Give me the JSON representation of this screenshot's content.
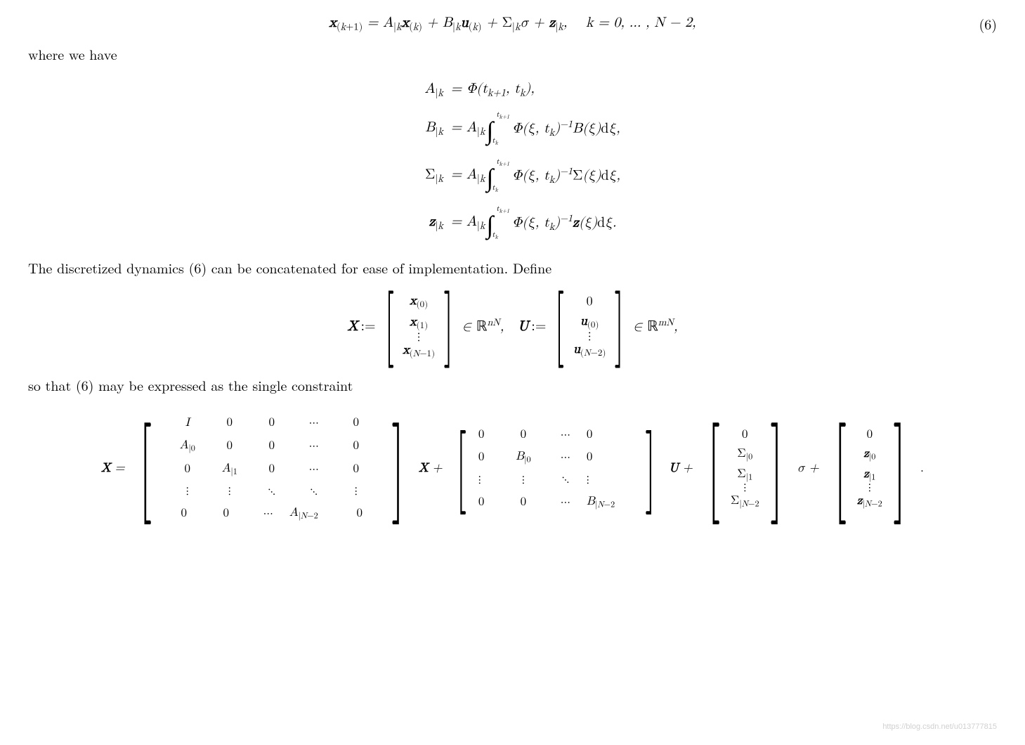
{
  "eq6": {
    "content": "x_{(k+1)} = A_{|k} x_{(k)} + B_{|k} u_{(k)} + Σ_{|k} σ + z_{|k},   k = 0, …, N − 2,",
    "number": "(6)"
  },
  "para1": "where we have",
  "defs": {
    "A": {
      "lhs": "A_{|k}",
      "rhs": "= Φ(t_{k+1}, t_k),"
    },
    "B": {
      "lhs": "B_{|k}",
      "rhs_prefix": "= A_{|k}",
      "int_lower": "t_k",
      "int_upper": "t_{k+1}",
      "integrand": "Φ(ξ, t_k)^{-1} B(ξ) dξ,"
    },
    "Sigma": {
      "lhs": "Σ_{|k}",
      "rhs_prefix": "= A_{|k}",
      "int_lower": "t_k",
      "int_upper": "t_{k+1}",
      "integrand": "Φ(ξ, t_k)^{-1} Σ(ξ) dξ,"
    },
    "z": {
      "lhs": "z_{|k}",
      "rhs_prefix": "= A_{|k}",
      "int_lower": "t_k",
      "int_upper": "t_{k+1}",
      "integrand": "Φ(ξ, t_k)^{-1} z(ξ) dξ."
    }
  },
  "para2": "The discretized dynamics (6) can be concatenated for ease of implementation. Define",
  "stacked": {
    "X_label": "X :=",
    "X_entries": [
      "x_{(0)}",
      "x_{(1)}",
      "⋮",
      "x_{(N-1)}"
    ],
    "X_space": "∈ ℝ^{nN},",
    "U_label": "U :=",
    "U_entries": [
      "0",
      "u_{(0)}",
      "⋮",
      "u_{(N-2)}"
    ],
    "U_space": "∈ ℝ^{mN},"
  },
  "para3": "so that (6) may be expressed as the single constraint",
  "bigeq": {
    "lhs": "X =",
    "A_matrix": {
      "rows": [
        [
          "I",
          "0",
          "0",
          "⋯",
          "0"
        ],
        [
          "A_{|0}",
          "0",
          "0",
          "⋯",
          "0"
        ],
        [
          "0",
          "A_{|1}",
          "0",
          "⋯",
          "0"
        ],
        [
          "⋮",
          "⋮",
          "⋱",
          "⋱",
          "⋮"
        ],
        [
          "0",
          "0",
          "⋯",
          "A_{|N-2}",
          "0"
        ]
      ]
    },
    "after_A": "X +",
    "B_matrix": {
      "rows": [
        [
          "0",
          "0",
          "⋯",
          "0"
        ],
        [
          "0",
          "B_{|0}",
          "⋯",
          "0"
        ],
        [
          "⋮",
          "⋮",
          "⋱",
          "⋮"
        ],
        [
          "0",
          "0",
          "⋯",
          "B_{|N-2}"
        ]
      ]
    },
    "after_B": "U +",
    "Sigma_vec": [
      "0",
      "Σ_{|0}",
      "Σ_{|1}",
      "⋮",
      "Σ_{|N-2}"
    ],
    "after_Sigma": "σ +",
    "z_vec": [
      "0",
      "z_{|0}",
      "z_{|1}",
      "⋮",
      "z_{|N-2}"
    ],
    "period": "."
  },
  "colors": {
    "text": "#000000",
    "background": "#ffffff",
    "watermark": "#d8d8d8"
  },
  "typography": {
    "body_fontsize_pt": 15,
    "math_font": "Latin Modern / Computer Modern"
  },
  "watermark": "https://blog.csdn.net/u013777815"
}
